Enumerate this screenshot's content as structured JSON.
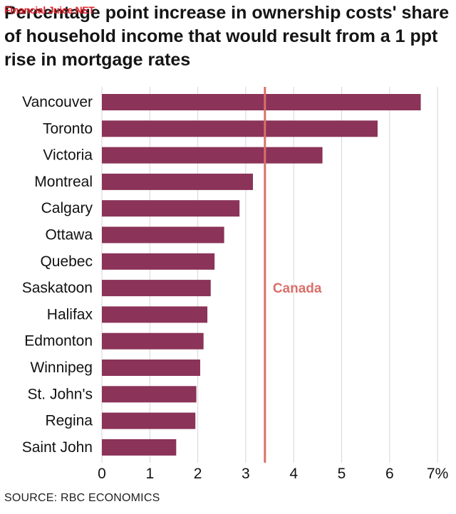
{
  "watermark": "Financial Juice.NET",
  "source": "SOURCE: RBC ECONOMICS",
  "colors": {
    "bar": "#8b3358",
    "reference": "#d9706a",
    "grid": "#d6d6d6"
  },
  "chart_data": {
    "type": "bar",
    "orientation": "horizontal",
    "title": "Percentage point increase in ownership costs' share of household income that would result from a 1 ppt rise in mortgage rates",
    "categories": [
      "Vancouver",
      "Toronto",
      "Victoria",
      "Montreal",
      "Calgary",
      "Ottawa",
      "Quebec",
      "Saskatoon",
      "Halifax",
      "Edmonton",
      "Winnipeg",
      "St. John's",
      "Regina",
      "Saint John"
    ],
    "values": [
      6.65,
      5.75,
      4.6,
      3.15,
      2.87,
      2.55,
      2.35,
      2.27,
      2.2,
      2.12,
      2.05,
      1.97,
      1.95,
      1.55
    ],
    "xticks": [
      "0",
      "1",
      "2",
      "3",
      "4",
      "5",
      "6",
      "7%"
    ],
    "xlim": [
      0,
      7
    ],
    "reference": {
      "label": "Canada",
      "value": 3.4
    },
    "grid": true,
    "xlabel": "",
    "ylabel": ""
  }
}
